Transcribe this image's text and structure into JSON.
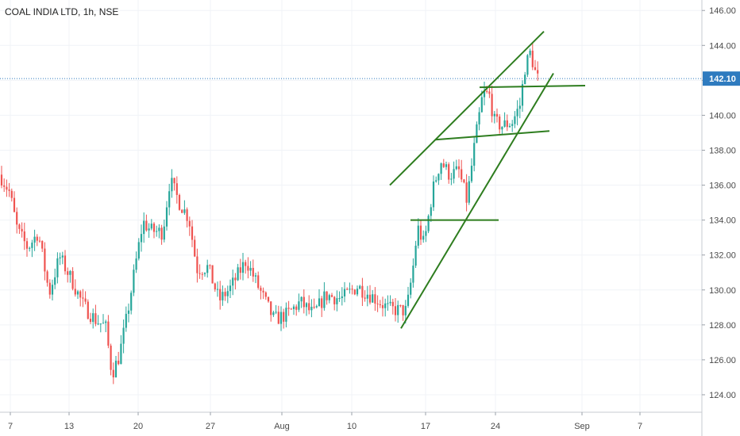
{
  "chart_data": {
    "type": "candlestick",
    "title": "COAL INDIA LTD, 1h, NSE",
    "price_axis": {
      "min": 123.0,
      "max": 146.6,
      "ticks": [
        "124.00",
        "126.00",
        "128.00",
        "130.00",
        "132.00",
        "134.00",
        "136.00",
        "138.00",
        "140.00",
        "142.00",
        "144.00",
        "146.00"
      ]
    },
    "time_axis": {
      "labels": [
        "7",
        "13",
        "20",
        "27",
        "Aug",
        "10",
        "17",
        "24",
        "Sep",
        "7"
      ]
    },
    "last_price": {
      "value": 142.1,
      "label": "142.10"
    },
    "grid": true,
    "colors": {
      "up": "#26a69a",
      "down": "#ef5350",
      "trendline": "#2e7d1f",
      "last_price": "#2f7bbf"
    },
    "price_path": [
      {
        "t": 0,
        "p": 136.6
      },
      {
        "t": 12,
        "p": 135.6
      },
      {
        "t": 22,
        "p": 133.4
      },
      {
        "t": 35,
        "p": 132.4
      },
      {
        "t": 48,
        "p": 133.3
      },
      {
        "t": 62,
        "p": 129.8
      },
      {
        "t": 75,
        "p": 131.9
      },
      {
        "t": 90,
        "p": 130.6
      },
      {
        "t": 105,
        "p": 129.1
      },
      {
        "t": 120,
        "p": 128.3
      },
      {
        "t": 133,
        "p": 127.9
      },
      {
        "t": 141,
        "p": 125.2
      },
      {
        "t": 150,
        "p": 126.2
      },
      {
        "t": 160,
        "p": 128.5
      },
      {
        "t": 172,
        "p": 131.8
      },
      {
        "t": 180,
        "p": 133.9
      },
      {
        "t": 190,
        "p": 133.4
      },
      {
        "t": 205,
        "p": 133.3
      },
      {
        "t": 214,
        "p": 136.3
      },
      {
        "t": 226,
        "p": 135.0
      },
      {
        "t": 238,
        "p": 134.1
      },
      {
        "t": 248,
        "p": 131.2
      },
      {
        "t": 262,
        "p": 131.3
      },
      {
        "t": 276,
        "p": 129.4
      },
      {
        "t": 290,
        "p": 130.1
      },
      {
        "t": 310,
        "p": 131.7
      },
      {
        "t": 326,
        "p": 130.1
      },
      {
        "t": 345,
        "p": 128.3
      },
      {
        "t": 362,
        "p": 128.6
      },
      {
        "t": 378,
        "p": 129.3
      },
      {
        "t": 395,
        "p": 128.6
      },
      {
        "t": 410,
        "p": 129.7
      },
      {
        "t": 430,
        "p": 129.5
      },
      {
        "t": 450,
        "p": 130.2
      },
      {
        "t": 470,
        "p": 129.6
      },
      {
        "t": 490,
        "p": 128.9
      },
      {
        "t": 512,
        "p": 128.8
      },
      {
        "t": 520,
        "p": 131.2
      },
      {
        "t": 526,
        "p": 133.6
      },
      {
        "t": 534,
        "p": 132.6
      },
      {
        "t": 545,
        "p": 135.7
      },
      {
        "t": 555,
        "p": 137.4
      },
      {
        "t": 566,
        "p": 136.6
      },
      {
        "t": 578,
        "p": 136.8
      },
      {
        "t": 588,
        "p": 135.1
      },
      {
        "t": 598,
        "p": 138.4
      },
      {
        "t": 608,
        "p": 141.2
      },
      {
        "t": 616,
        "p": 141.2
      },
      {
        "t": 623,
        "p": 139.6
      },
      {
        "t": 632,
        "p": 139.4
      },
      {
        "t": 645,
        "p": 139.6
      },
      {
        "t": 655,
        "p": 140.6
      },
      {
        "t": 661,
        "p": 142.7
      },
      {
        "t": 668,
        "p": 143.6
      },
      {
        "t": 676,
        "p": 142.1
      },
      {
        "t": 680,
        "p": 142.1
      }
    ],
    "trendlines": [
      {
        "from": {
          "t": 491,
          "p": 136.0
        },
        "to": {
          "t": 685,
          "p": 144.8
        }
      },
      {
        "from": {
          "t": 505,
          "p": 127.8
        },
        "to": {
          "t": 697,
          "p": 142.4
        }
      },
      {
        "from": {
          "t": 517,
          "p": 134.0
        },
        "to": {
          "t": 628,
          "p": 134.0
        }
      },
      {
        "from": {
          "t": 548,
          "p": 138.6
        },
        "to": {
          "t": 692,
          "p": 139.1
        }
      },
      {
        "from": {
          "t": 604,
          "p": 141.6
        },
        "to": {
          "t": 737,
          "p": 141.7
        }
      }
    ]
  }
}
